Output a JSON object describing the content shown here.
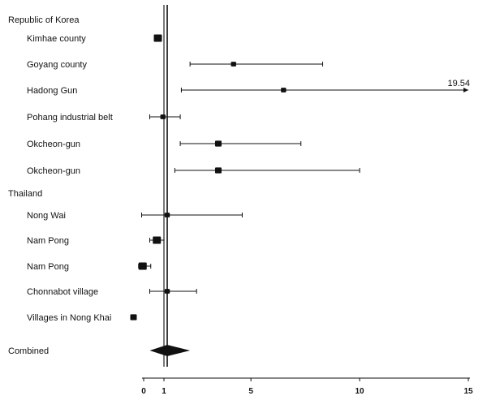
{
  "chart_data": {
    "type": "forest",
    "xlim": [
      0,
      15
    ],
    "xticks": [
      "0",
      "1",
      "5",
      "10",
      "15"
    ],
    "reference_line": 1,
    "combined_estimate": 1.15,
    "groups": [
      {
        "label": "Republic of Korea"
      },
      {
        "label": "Thailand"
      }
    ],
    "rows": [
      {
        "group": 0,
        "label": "Kimhae county",
        "est": 0.7,
        "lo": 0.55,
        "hi": 0.85,
        "weight": "large"
      },
      {
        "group": 0,
        "label": "Goyang county",
        "est": 4.2,
        "lo": 2.2,
        "hi": 8.3,
        "weight": "small"
      },
      {
        "group": 0,
        "label": "Hadong Gun",
        "est": 6.5,
        "lo": 1.8,
        "hi": 19.54,
        "truncated": true,
        "upper_label": "19.54",
        "weight": "small"
      },
      {
        "group": 0,
        "label": "Pohang industrial belt",
        "est": 0.95,
        "lo": 0.3,
        "hi": 1.75,
        "weight": "small"
      },
      {
        "group": 0,
        "label": "Okcheon-gun",
        "est": 3.5,
        "lo": 1.75,
        "hi": 7.3,
        "weight": "medium"
      },
      {
        "group": 0,
        "label": "Okcheon-gun",
        "est": 3.5,
        "lo": 1.5,
        "hi": 10.0,
        "weight": "medium"
      },
      {
        "group": 1,
        "label": "Nong Wai",
        "est": 1.15,
        "lo": -0.1,
        "hi": 4.6,
        "weight": "small"
      },
      {
        "group": 1,
        "label": "Nam Pong",
        "est": 0.65,
        "lo": 0.3,
        "hi": 1.0,
        "weight": "large"
      },
      {
        "group": 1,
        "label": "Nam Pong",
        "est": -0.05,
        "lo": -0.25,
        "hi": 0.35,
        "weight": "large"
      },
      {
        "group": 1,
        "label": "Chonnabot village",
        "est": 1.15,
        "lo": 0.3,
        "hi": 2.5,
        "weight": "small"
      },
      {
        "group": 1,
        "label": "Villages in Nong Khai",
        "est": -0.5,
        "lo": -0.5,
        "hi": -0.5,
        "weight": "medium"
      }
    ],
    "combined": {
      "label": "Combined",
      "est": 1.15,
      "lo": 0.3,
      "hi": 2.2
    }
  }
}
